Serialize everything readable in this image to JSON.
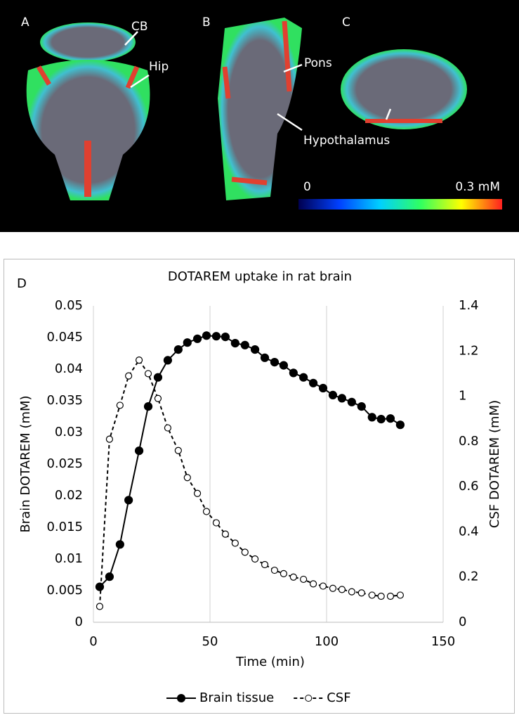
{
  "image_panel": {
    "panel_labels": [
      "A",
      "B",
      "C"
    ],
    "annotations": [
      "CB",
      "Hip",
      "Pons",
      "Hypothalamus"
    ],
    "colorbar_labels": [
      "0",
      "0.3 mM"
    ]
  },
  "chart_data": {
    "type": "line",
    "panel_label": "D",
    "title": "DOTAREM uptake in rat brain",
    "x_label": "Time (min)",
    "y_label": "Brain DOTAREM (mM)",
    "y2_label": "CSF DOTAREM (mM)",
    "x": [
      2.7,
      6.9,
      11.4,
      15.1,
      19.6,
      23.5,
      27.7,
      31.9,
      36.4,
      40.3,
      44.6,
      48.5,
      52.7,
      56.6,
      60.8,
      65,
      69.3,
      73.5,
      77.7,
      81.6,
      85.8,
      90.1,
      94.3,
      98.5,
      102.7,
      106.6,
      110.8,
      115,
      119.5,
      123.4,
      127.4,
      131.6
    ],
    "series": [
      {
        "name": "Brain tissue",
        "color": "#000000",
        "line_style": "solid",
        "marker": "filled",
        "values": [
          0.0056,
          0.0072,
          0.0123,
          0.0193,
          0.0271,
          0.0341,
          0.0387,
          0.0414,
          0.0431,
          0.0442,
          0.0448,
          0.0453,
          0.0452,
          0.0451,
          0.0441,
          0.0438,
          0.0431,
          0.0418,
          0.0411,
          0.0406,
          0.0394,
          0.0387,
          0.0378,
          0.037,
          0.0359,
          0.0354,
          0.0348,
          0.0341,
          0.0324,
          0.0321,
          0.0322,
          0.0312
        ]
      },
      {
        "name": "CSF",
        "color": "#000000",
        "line_style": "dashed",
        "marker": "open",
        "axis": "y2",
        "values": [
          0.07,
          0.81,
          0.96,
          1.09,
          1.16,
          1.1,
          0.99,
          0.86,
          0.76,
          0.64,
          0.57,
          0.49,
          0.44,
          0.39,
          0.35,
          0.31,
          0.28,
          0.255,
          0.23,
          0.215,
          0.2,
          0.19,
          0.17,
          0.16,
          0.15,
          0.145,
          0.135,
          0.13,
          0.12,
          0.115,
          0.115,
          0.12
        ]
      }
    ],
    "xlim": [
      0,
      150
    ],
    "xticks": [
      0,
      50,
      100,
      150
    ],
    "ylim": [
      0,
      0.05
    ],
    "yticks": [
      0,
      0.005,
      0.01,
      0.015,
      0.02,
      0.025,
      0.03,
      0.035,
      0.04,
      0.045,
      0.05
    ],
    "y2lim": [
      0,
      1.4
    ],
    "y2ticks": [
      0,
      0.2,
      0.4,
      0.6,
      0.8,
      1,
      1.2,
      1.4
    ],
    "grid": "x",
    "legend": "bottom"
  }
}
